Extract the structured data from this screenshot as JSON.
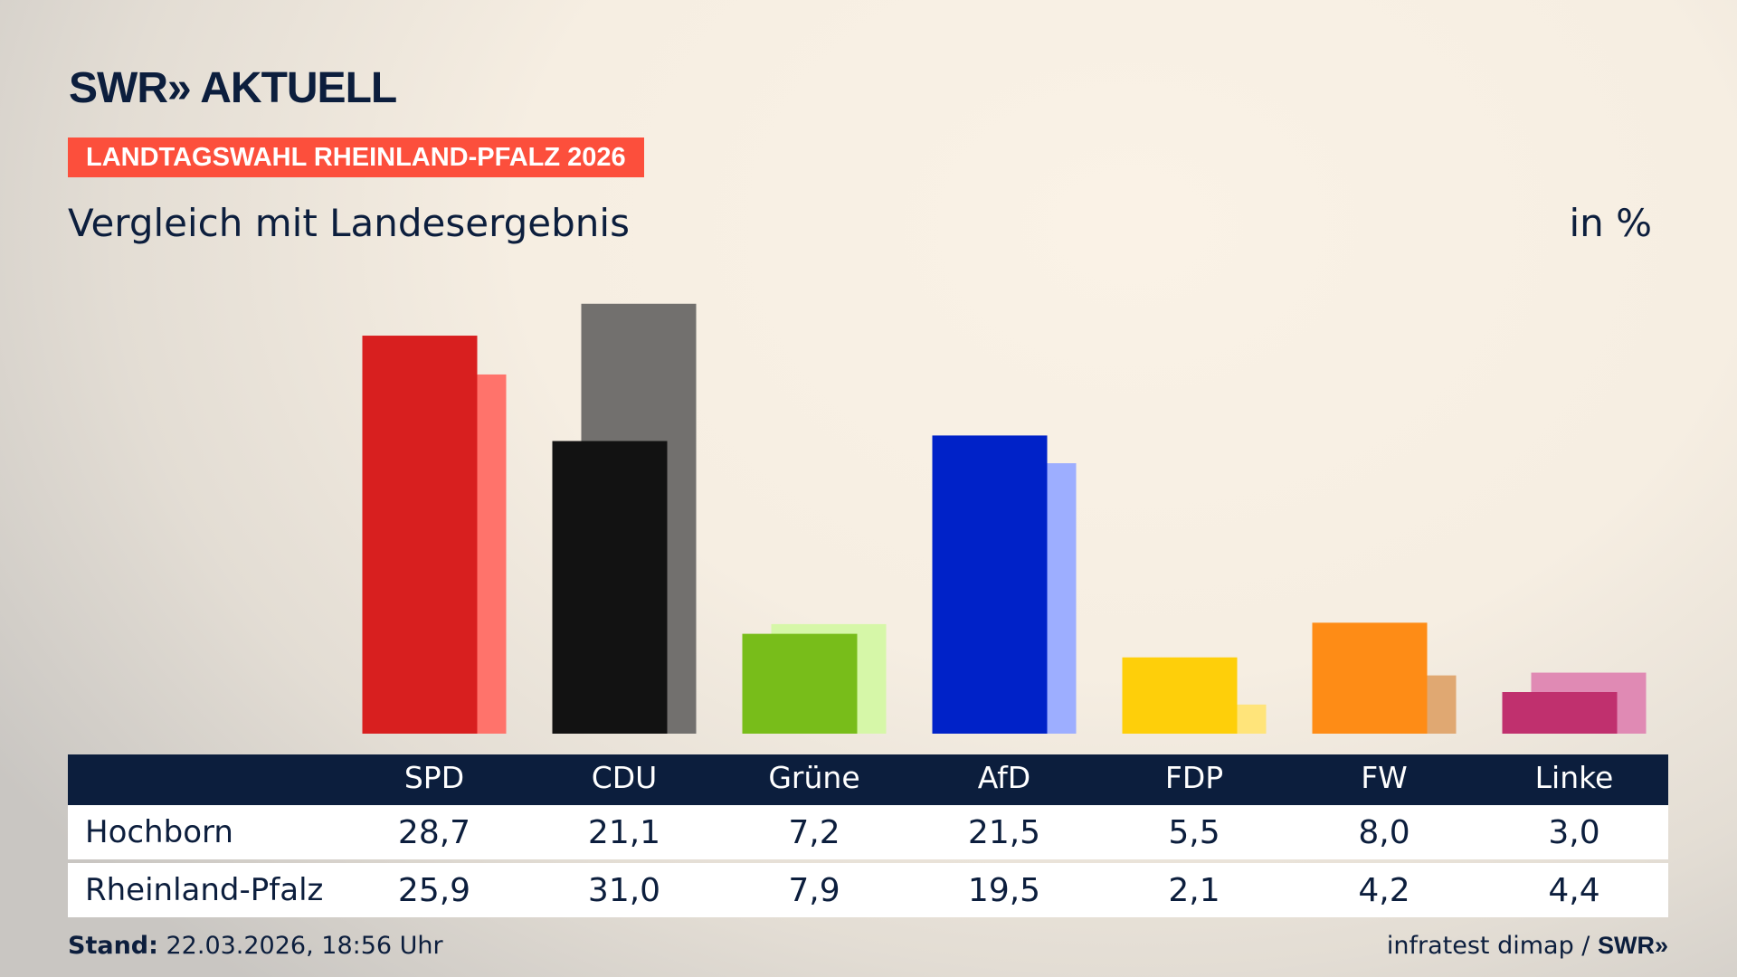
{
  "header": {
    "logo": "SWR» AKTUELL",
    "kicker": "LANDTAGSWAHL RHEINLAND-PFALZ 2026",
    "subtitle": "Vergleich mit Landesergebnis",
    "unit": "in %"
  },
  "chart_data": {
    "type": "bar",
    "categories": [
      "SPD",
      "CDU",
      "Grüne",
      "AfD",
      "FDP",
      "FW",
      "Linke"
    ],
    "series": [
      {
        "name": "Hochborn",
        "values": [
          28.7,
          21.1,
          7.2,
          21.5,
          5.5,
          8.0,
          3.0
        ],
        "display": [
          "28,7",
          "21,1",
          "7,2",
          "21,5",
          "5,5",
          "8,0",
          "3,0"
        ],
        "colors": [
          "#d81f1f",
          "#121212",
          "#78bd1a",
          "#0022c8",
          "#fecf0a",
          "#fe8c16",
          "#c0306e"
        ]
      },
      {
        "name": "Rheinland-Pfalz",
        "values": [
          25.9,
          31.0,
          7.9,
          19.5,
          2.1,
          4.2,
          4.4
        ],
        "display": [
          "25,9",
          "31,0",
          "7,9",
          "19,5",
          "2,1",
          "4,2",
          "4,4"
        ],
        "colors": [
          "#ff736b",
          "#72706e",
          "#d6f7a8",
          "#9daeff",
          "#ffe47a",
          "#e0a872",
          "#e08ab4"
        ]
      }
    ],
    "ylim": [
      0,
      31
    ],
    "grid": false
  },
  "footer": {
    "stand_label": "Stand:",
    "stand_value": " 22.03.2026, 18:56 Uhr",
    "source": "infratest dimap / ",
    "source_logo": "SWR»"
  }
}
